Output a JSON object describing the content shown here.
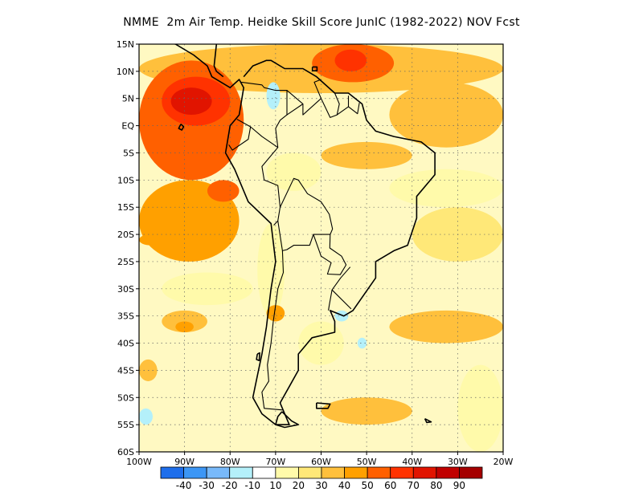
{
  "title": "NMME  2m Air Temp. Heidke Skill Score JunIC (1982-2022) NOV Fcst",
  "map": {
    "lon_range": [
      -100,
      -20
    ],
    "lat_range": [
      -60,
      15
    ],
    "lat_ticks": [
      {
        "value": 15,
        "label": "15N"
      },
      {
        "value": 10,
        "label": "10N"
      },
      {
        "value": 5,
        "label": "5N"
      },
      {
        "value": 0,
        "label": "EQ"
      },
      {
        "value": -5,
        "label": "5S"
      },
      {
        "value": -10,
        "label": "10S"
      },
      {
        "value": -15,
        "label": "15S"
      },
      {
        "value": -20,
        "label": "20S"
      },
      {
        "value": -25,
        "label": "25S"
      },
      {
        "value": -30,
        "label": "30S"
      },
      {
        "value": -35,
        "label": "35S"
      },
      {
        "value": -40,
        "label": "40S"
      },
      {
        "value": -45,
        "label": "45S"
      },
      {
        "value": -50,
        "label": "50S"
      },
      {
        "value": -55,
        "label": "55S"
      },
      {
        "value": -60,
        "label": "60S"
      }
    ],
    "lon_ticks": [
      {
        "value": -100,
        "label": "100W"
      },
      {
        "value": -90,
        "label": "90W"
      },
      {
        "value": -80,
        "label": "80W"
      },
      {
        "value": -70,
        "label": "70W"
      },
      {
        "value": -60,
        "label": "60W"
      },
      {
        "value": -50,
        "label": "50W"
      },
      {
        "value": -40,
        "label": "40W"
      },
      {
        "value": -30,
        "label": "30W"
      },
      {
        "value": -20,
        "label": "20W"
      }
    ],
    "gridlines": true,
    "background_color": "#fff9c2",
    "skill_regions": [
      {
        "level": 30,
        "lon": [
          -100,
          -20
        ],
        "lat": [
          15,
          6
        ]
      },
      {
        "level": 50,
        "lon": [
          -62,
          -44
        ],
        "lat": [
          15,
          8
        ]
      },
      {
        "level": 60,
        "lon": [
          -57,
          -50
        ],
        "lat": [
          14,
          10
        ]
      },
      {
        "level": 50,
        "lon": [
          -100,
          -77
        ],
        "lat": [
          12,
          -10
        ]
      },
      {
        "level": 60,
        "lon": [
          -95,
          -80
        ],
        "lat": [
          9,
          0
        ]
      },
      {
        "level": 70,
        "lon": [
          -93,
          -84
        ],
        "lat": [
          7,
          2
        ]
      },
      {
        "level": 40,
        "lon": [
          -100,
          -78
        ],
        "lat": [
          -10,
          -25
        ]
      },
      {
        "level": 50,
        "lon": [
          -85,
          -78
        ],
        "lat": [
          -10,
          -14
        ]
      },
      {
        "level": 40,
        "lon": [
          -100,
          -95
        ],
        "lat": [
          -20,
          -22
        ]
      },
      {
        "level": 30,
        "lon": [
          -45,
          -20
        ],
        "lat": [
          8,
          -4
        ]
      },
      {
        "level": 30,
        "lon": [
          -60,
          -40
        ],
        "lat": [
          -3,
          -8
        ]
      },
      {
        "level": 30,
        "lon": [
          -95,
          -85
        ],
        "lat": [
          -34,
          -38
        ]
      },
      {
        "level": 40,
        "lon": [
          -92,
          -88
        ],
        "lat": [
          -36,
          -38
        ]
      },
      {
        "level": 30,
        "lon": [
          -100,
          -96
        ],
        "lat": [
          -43,
          -47
        ]
      },
      {
        "level": 30,
        "lon": [
          -60,
          -40
        ],
        "lat": [
          -50,
          -55
        ]
      },
      {
        "level": 30,
        "lon": [
          -45,
          -20
        ],
        "lat": [
          -34,
          -40
        ]
      },
      {
        "level": 20,
        "lon": [
          -40,
          -20
        ],
        "lat": [
          -15,
          -25
        ]
      },
      {
        "level": 10,
        "lon": [
          -45,
          -20
        ],
        "lat": [
          -8,
          -15
        ]
      },
      {
        "level": 10,
        "lon": [
          -95,
          -75
        ],
        "lat": [
          -27,
          -33
        ]
      },
      {
        "level": 10,
        "lon": [
          -65,
          -55
        ],
        "lat": [
          -36,
          -44
        ]
      },
      {
        "level": 10,
        "lon": [
          -72,
          -60
        ],
        "lat": [
          -5,
          -12
        ]
      },
      {
        "level": 10,
        "lon": [
          -74,
          -68
        ],
        "lat": [
          -18,
          -35
        ]
      },
      {
        "level": 10,
        "lon": [
          -30,
          -20
        ],
        "lat": [
          -44,
          -60
        ]
      },
      {
        "level": -10,
        "lon": [
          -72,
          -69
        ],
        "lat": [
          8,
          3
        ]
      },
      {
        "level": -10,
        "lon": [
          -57,
          -54
        ],
        "lat": [
          -34,
          -36
        ]
      },
      {
        "level": -10,
        "lon": [
          -100,
          -97
        ],
        "lat": [
          -52,
          -55
        ]
      },
      {
        "level": -10,
        "lon": [
          -52,
          -50
        ],
        "lat": [
          -39,
          -41
        ]
      },
      {
        "level": 40,
        "lon": [
          -72,
          -68
        ],
        "lat": [
          -33,
          -36
        ]
      }
    ],
    "coastlines": [
      [
        [
          -117,
          32
        ],
        [
          -110,
          23
        ],
        [
          -105,
          20
        ],
        [
          -97,
          16
        ],
        [
          -92,
          15
        ],
        [
          -88,
          13
        ],
        [
          -85,
          11
        ],
        [
          -84,
          9
        ],
        [
          -80,
          7
        ],
        [
          -78,
          8.5
        ],
        [
          -77,
          7
        ],
        [
          -78,
          2
        ],
        [
          -80,
          0
        ],
        [
          -81,
          -5
        ],
        [
          -79,
          -8
        ],
        [
          -76,
          -14
        ],
        [
          -71,
          -18
        ],
        [
          -70,
          -25
        ],
        [
          -71,
          -30
        ],
        [
          -72,
          -37
        ],
        [
          -73,
          -42
        ],
        [
          -74,
          -46
        ],
        [
          -75,
          -50
        ],
        [
          -73,
          -53
        ],
        [
          -70,
          -55
        ],
        [
          -67,
          -55
        ],
        [
          -68,
          -53
        ],
        [
          -69,
          -51
        ],
        [
          -67,
          -48
        ],
        [
          -65,
          -45
        ],
        [
          -65,
          -42
        ],
        [
          -62,
          -39
        ],
        [
          -57,
          -38
        ],
        [
          -57,
          -36
        ],
        [
          -58,
          -34
        ],
        [
          -55,
          -35
        ],
        [
          -53,
          -34
        ],
        [
          -48,
          -28
        ],
        [
          -48,
          -25
        ],
        [
          -44,
          -23
        ],
        [
          -41,
          -22
        ],
        [
          -39,
          -17
        ],
        [
          -39,
          -13
        ],
        [
          -35,
          -9
        ],
        [
          -35,
          -5
        ],
        [
          -38,
          -3
        ],
        [
          -44,
          -2
        ],
        [
          -48,
          -1
        ],
        [
          -50,
          1
        ],
        [
          -51,
          4
        ],
        [
          -54,
          6
        ],
        [
          -57,
          6
        ],
        [
          -61,
          9
        ],
        [
          -64,
          10.5
        ],
        [
          -68,
          10.5
        ],
        [
          -71,
          12
        ],
        [
          -72,
          12
        ],
        [
          -75,
          11
        ],
        [
          -77,
          9
        ]
      ],
      [
        [
          -97,
          16
        ],
        [
          -94,
          18.5
        ],
        [
          -91,
          19
        ],
        [
          -90,
          21
        ],
        [
          -87,
          21
        ],
        [
          -88,
          17
        ],
        [
          -88,
          16
        ],
        [
          -84,
          16
        ],
        [
          -83,
          15
        ],
        [
          -83.5,
          11
        ],
        [
          -83,
          10
        ],
        [
          -81.5,
          9
        ]
      ],
      [
        [
          -85,
          23
        ],
        [
          -82,
          23
        ],
        [
          -77,
          21
        ],
        [
          -74,
          20
        ],
        [
          -77,
          20
        ],
        [
          -80,
          22
        ],
        [
          -85,
          22
        ],
        [
          -85,
          23
        ]
      ],
      [
        [
          -74,
          19.5
        ],
        [
          -72,
          19.8
        ],
        [
          -68.5,
          18.5
        ],
        [
          -70,
          18
        ],
        [
          -72.5,
          18
        ],
        [
          -74,
          18.3
        ],
        [
          -74,
          19.5
        ]
      ],
      [
        [
          -67.2,
          18.5
        ],
        [
          -65.6,
          18.4
        ],
        [
          -65.7,
          18
        ],
        [
          -67.2,
          18
        ],
        [
          -67.2,
          18.5
        ]
      ],
      [
        [
          -78.3,
          18.4
        ],
        [
          -76.3,
          18.2
        ],
        [
          -76.3,
          17.9
        ],
        [
          -77.8,
          17.9
        ],
        [
          -78.3,
          18.4
        ]
      ],
      [
        [
          -61.9,
          10.8
        ],
        [
          -60.9,
          10.8
        ],
        [
          -60.9,
          10.1
        ],
        [
          -61.9,
          10.1
        ],
        [
          -61.9,
          10.8
        ]
      ],
      [
        [
          -68.6,
          -52.6
        ],
        [
          -66.5,
          -54.3
        ],
        [
          -65,
          -55
        ],
        [
          -68,
          -55.5
        ],
        [
          -70,
          -55
        ],
        [
          -69.5,
          -53.5
        ],
        [
          -68.6,
          -52.6
        ]
      ],
      [
        [
          -61,
          -51
        ],
        [
          -58,
          -51.2
        ],
        [
          -58.5,
          -52
        ],
        [
          -61,
          -52
        ],
        [
          -61,
          -51
        ]
      ],
      [
        [
          -90.8,
          0.3
        ],
        [
          -90.2,
          -0.2
        ],
        [
          -90.6,
          -0.8
        ],
        [
          -91.3,
          -0.5
        ],
        [
          -90.8,
          0.3
        ]
      ],
      [
        [
          -74,
          -42
        ],
        [
          -73.5,
          -41.8
        ],
        [
          -73.6,
          -43.2
        ],
        [
          -74.2,
          -43
        ],
        [
          -74,
          -42
        ]
      ],
      [
        [
          -37.2,
          -53.9
        ],
        [
          -35.8,
          -54.5
        ],
        [
          -36.8,
          -54.6
        ],
        [
          -37.2,
          -53.9
        ]
      ]
    ],
    "borders": [
      [
        [
          -77.5,
          8
        ],
        [
          -73,
          7.5
        ],
        [
          -72.5,
          7
        ],
        [
          -70,
          6.5
        ],
        [
          -67.5,
          6.5
        ],
        [
          -67.5,
          2
        ],
        [
          -69,
          1
        ],
        [
          -70,
          -0.5
        ],
        [
          -69.5,
          -4
        ],
        [
          -73,
          -2
        ],
        [
          -75.5,
          -0.2
        ],
        [
          -78.5,
          1.2
        ]
      ],
      [
        [
          -80.3,
          -3.5
        ],
        [
          -79.5,
          -4.5
        ],
        [
          -76,
          -2.5
        ],
        [
          -75.5,
          -0.2
        ]
      ],
      [
        [
          -69.5,
          -4
        ],
        [
          -73,
          -7.5
        ],
        [
          -72.5,
          -10
        ],
        [
          -69.5,
          -11
        ],
        [
          -69,
          -15
        ],
        [
          -69.5,
          -17.5
        ],
        [
          -70.4,
          -18.3
        ]
      ],
      [
        [
          -69,
          -15
        ],
        [
          -66,
          -9.7
        ],
        [
          -65,
          -10
        ],
        [
          -63,
          -12.5
        ],
        [
          -60,
          -14
        ],
        [
          -58.2,
          -16.3
        ],
        [
          -57.5,
          -19
        ],
        [
          -58,
          -20
        ],
        [
          -61.7,
          -20
        ],
        [
          -62.5,
          -22
        ],
        [
          -66,
          -22
        ],
        [
          -67.5,
          -22.8
        ],
        [
          -68.5,
          -23
        ],
        [
          -69.5,
          -17.5
        ]
      ],
      [
        [
          -58,
          -20
        ],
        [
          -58.1,
          -22.5
        ],
        [
          -55.5,
          -24
        ],
        [
          -54.5,
          -25.6
        ],
        [
          -55.8,
          -27.4
        ],
        [
          -58.6,
          -27.3
        ],
        [
          -57.8,
          -25.2
        ],
        [
          -60,
          -24
        ],
        [
          -61.7,
          -20
        ]
      ],
      [
        [
          -68.5,
          -23
        ],
        [
          -68.3,
          -27
        ],
        [
          -69.5,
          -30
        ],
        [
          -70,
          -33
        ],
        [
          -70.5,
          -36
        ],
        [
          -71,
          -40
        ],
        [
          -71.8,
          -44
        ],
        [
          -71.5,
          -47
        ],
        [
          -73,
          -49
        ],
        [
          -72.5,
          -52
        ],
        [
          -68.5,
          -52.3
        ]
      ],
      [
        [
          -53.6,
          -26
        ],
        [
          -55.7,
          -28
        ],
        [
          -57.6,
          -30.2
        ],
        [
          -53.4,
          -33.7
        ]
      ],
      [
        [
          -57.6,
          -30.2
        ],
        [
          -58.2,
          -33
        ],
        [
          -58.4,
          -34
        ]
      ],
      [
        [
          -67.5,
          6.5
        ],
        [
          -64,
          4
        ],
        [
          -64,
          2
        ],
        [
          -60,
          5
        ],
        [
          -61.5,
          8
        ],
        [
          -60,
          8.5
        ]
      ],
      [
        [
          -60,
          5
        ],
        [
          -58,
          1.5
        ],
        [
          -56.5,
          2
        ],
        [
          -54,
          3.5
        ],
        [
          -54,
          5.5
        ]
      ],
      [
        [
          -56.5,
          2
        ],
        [
          -56,
          4
        ],
        [
          -57,
          6
        ]
      ],
      [
        [
          -54,
          3.5
        ],
        [
          -52,
          2.2
        ],
        [
          -51.6,
          4.2
        ]
      ],
      [
        [
          -67.5,
          2
        ],
        [
          -64,
          4
        ]
      ]
    ]
  },
  "colorbar": {
    "colors": [
      "#1e6eeb",
      "#3c96f5",
      "#78b9fa",
      "#b4f0fa",
      "#ffffff",
      "#fffaaa",
      "#ffe878",
      "#ffc03c",
      "#ffa000",
      "#ff6000",
      "#ff3200",
      "#e11400",
      "#c00000",
      "#a50000"
    ],
    "labels": [
      "-40",
      "-30",
      "-20",
      "-10",
      "10",
      "20",
      "30",
      "40",
      "50",
      "60",
      "70",
      "80",
      "90"
    ]
  }
}
